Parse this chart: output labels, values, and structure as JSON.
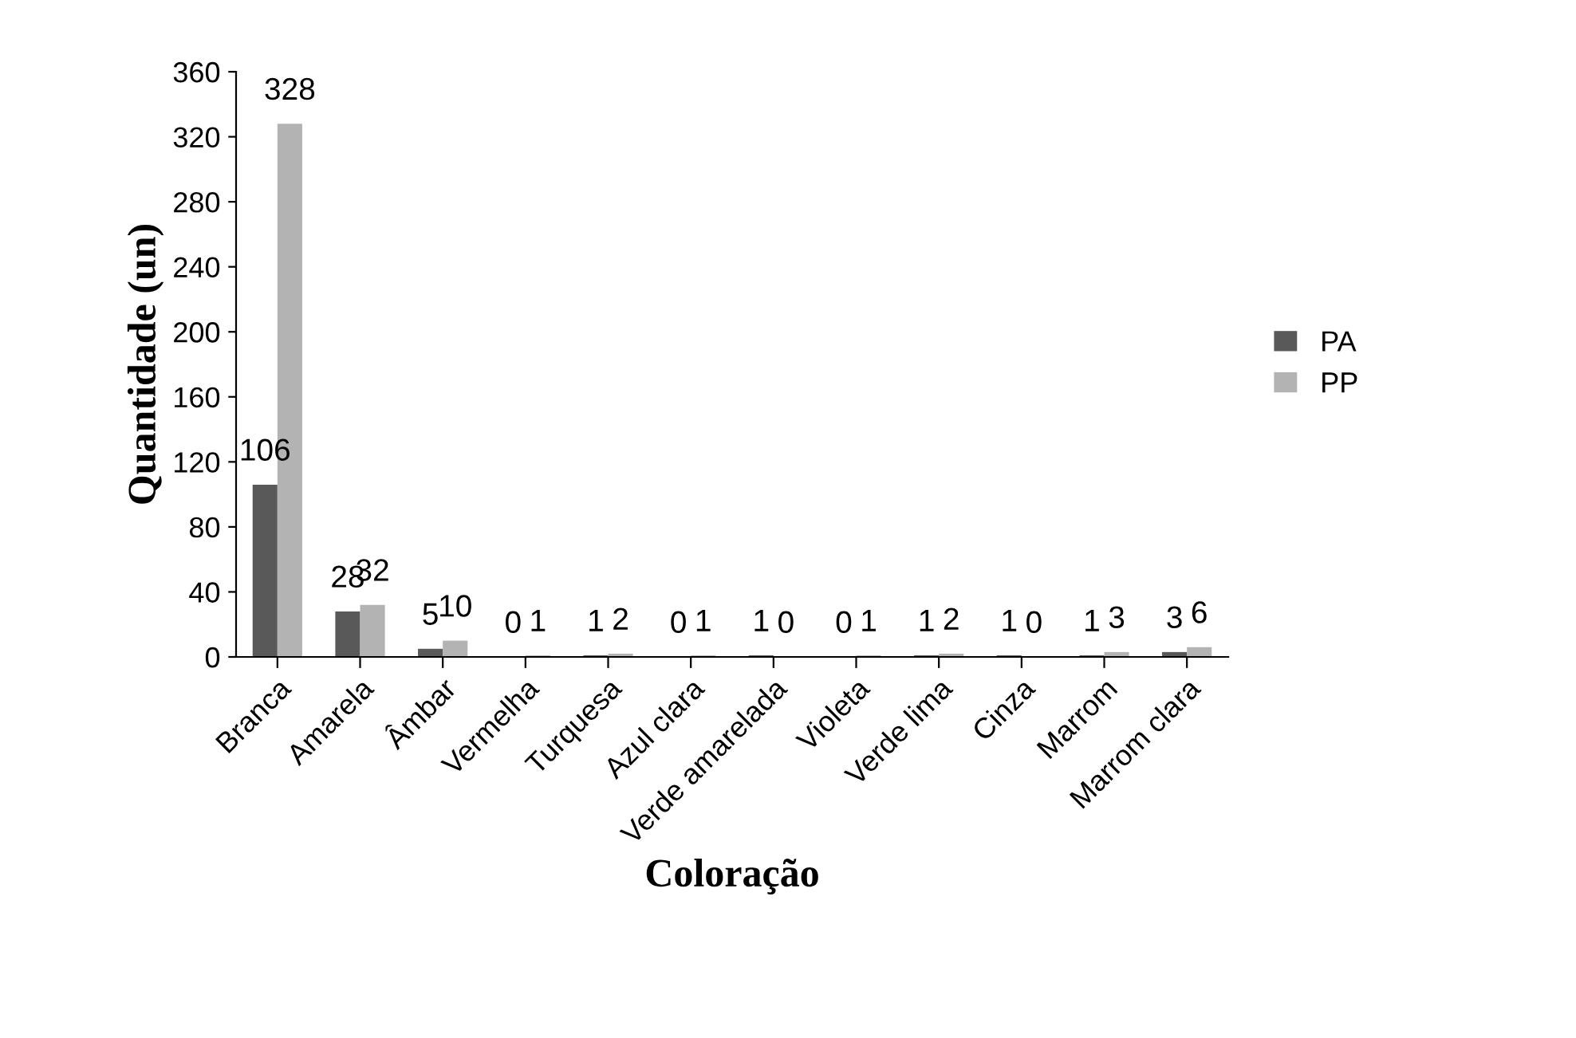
{
  "chart_data": {
    "type": "bar",
    "xlabel": "Coloração",
    "ylabel": "Quantidade (un)",
    "categories": [
      "Branca",
      "Amarela",
      "Âmbar",
      "Vermelha",
      "Turquesa",
      "Azul clara",
      "Verde amarelada",
      "Violeta",
      "Verde lima",
      "Cinza",
      "Marrom",
      "Marrom clara"
    ],
    "series": [
      {
        "name": "PA",
        "color": "#595959",
        "values": [
          106,
          28,
          5,
          0,
          1,
          0,
          1,
          0,
          1,
          1,
          1,
          3
        ]
      },
      {
        "name": "PP",
        "color": "#b3b3b3",
        "values": [
          328,
          32,
          10,
          1,
          2,
          1,
          0,
          1,
          2,
          0,
          3,
          6
        ]
      }
    ],
    "ylim": [
      0,
      360
    ],
    "yticks": [
      0,
      40,
      80,
      120,
      160,
      200,
      240,
      280,
      320,
      360
    ],
    "grid": false,
    "legend": "right",
    "data_labels": true
  }
}
